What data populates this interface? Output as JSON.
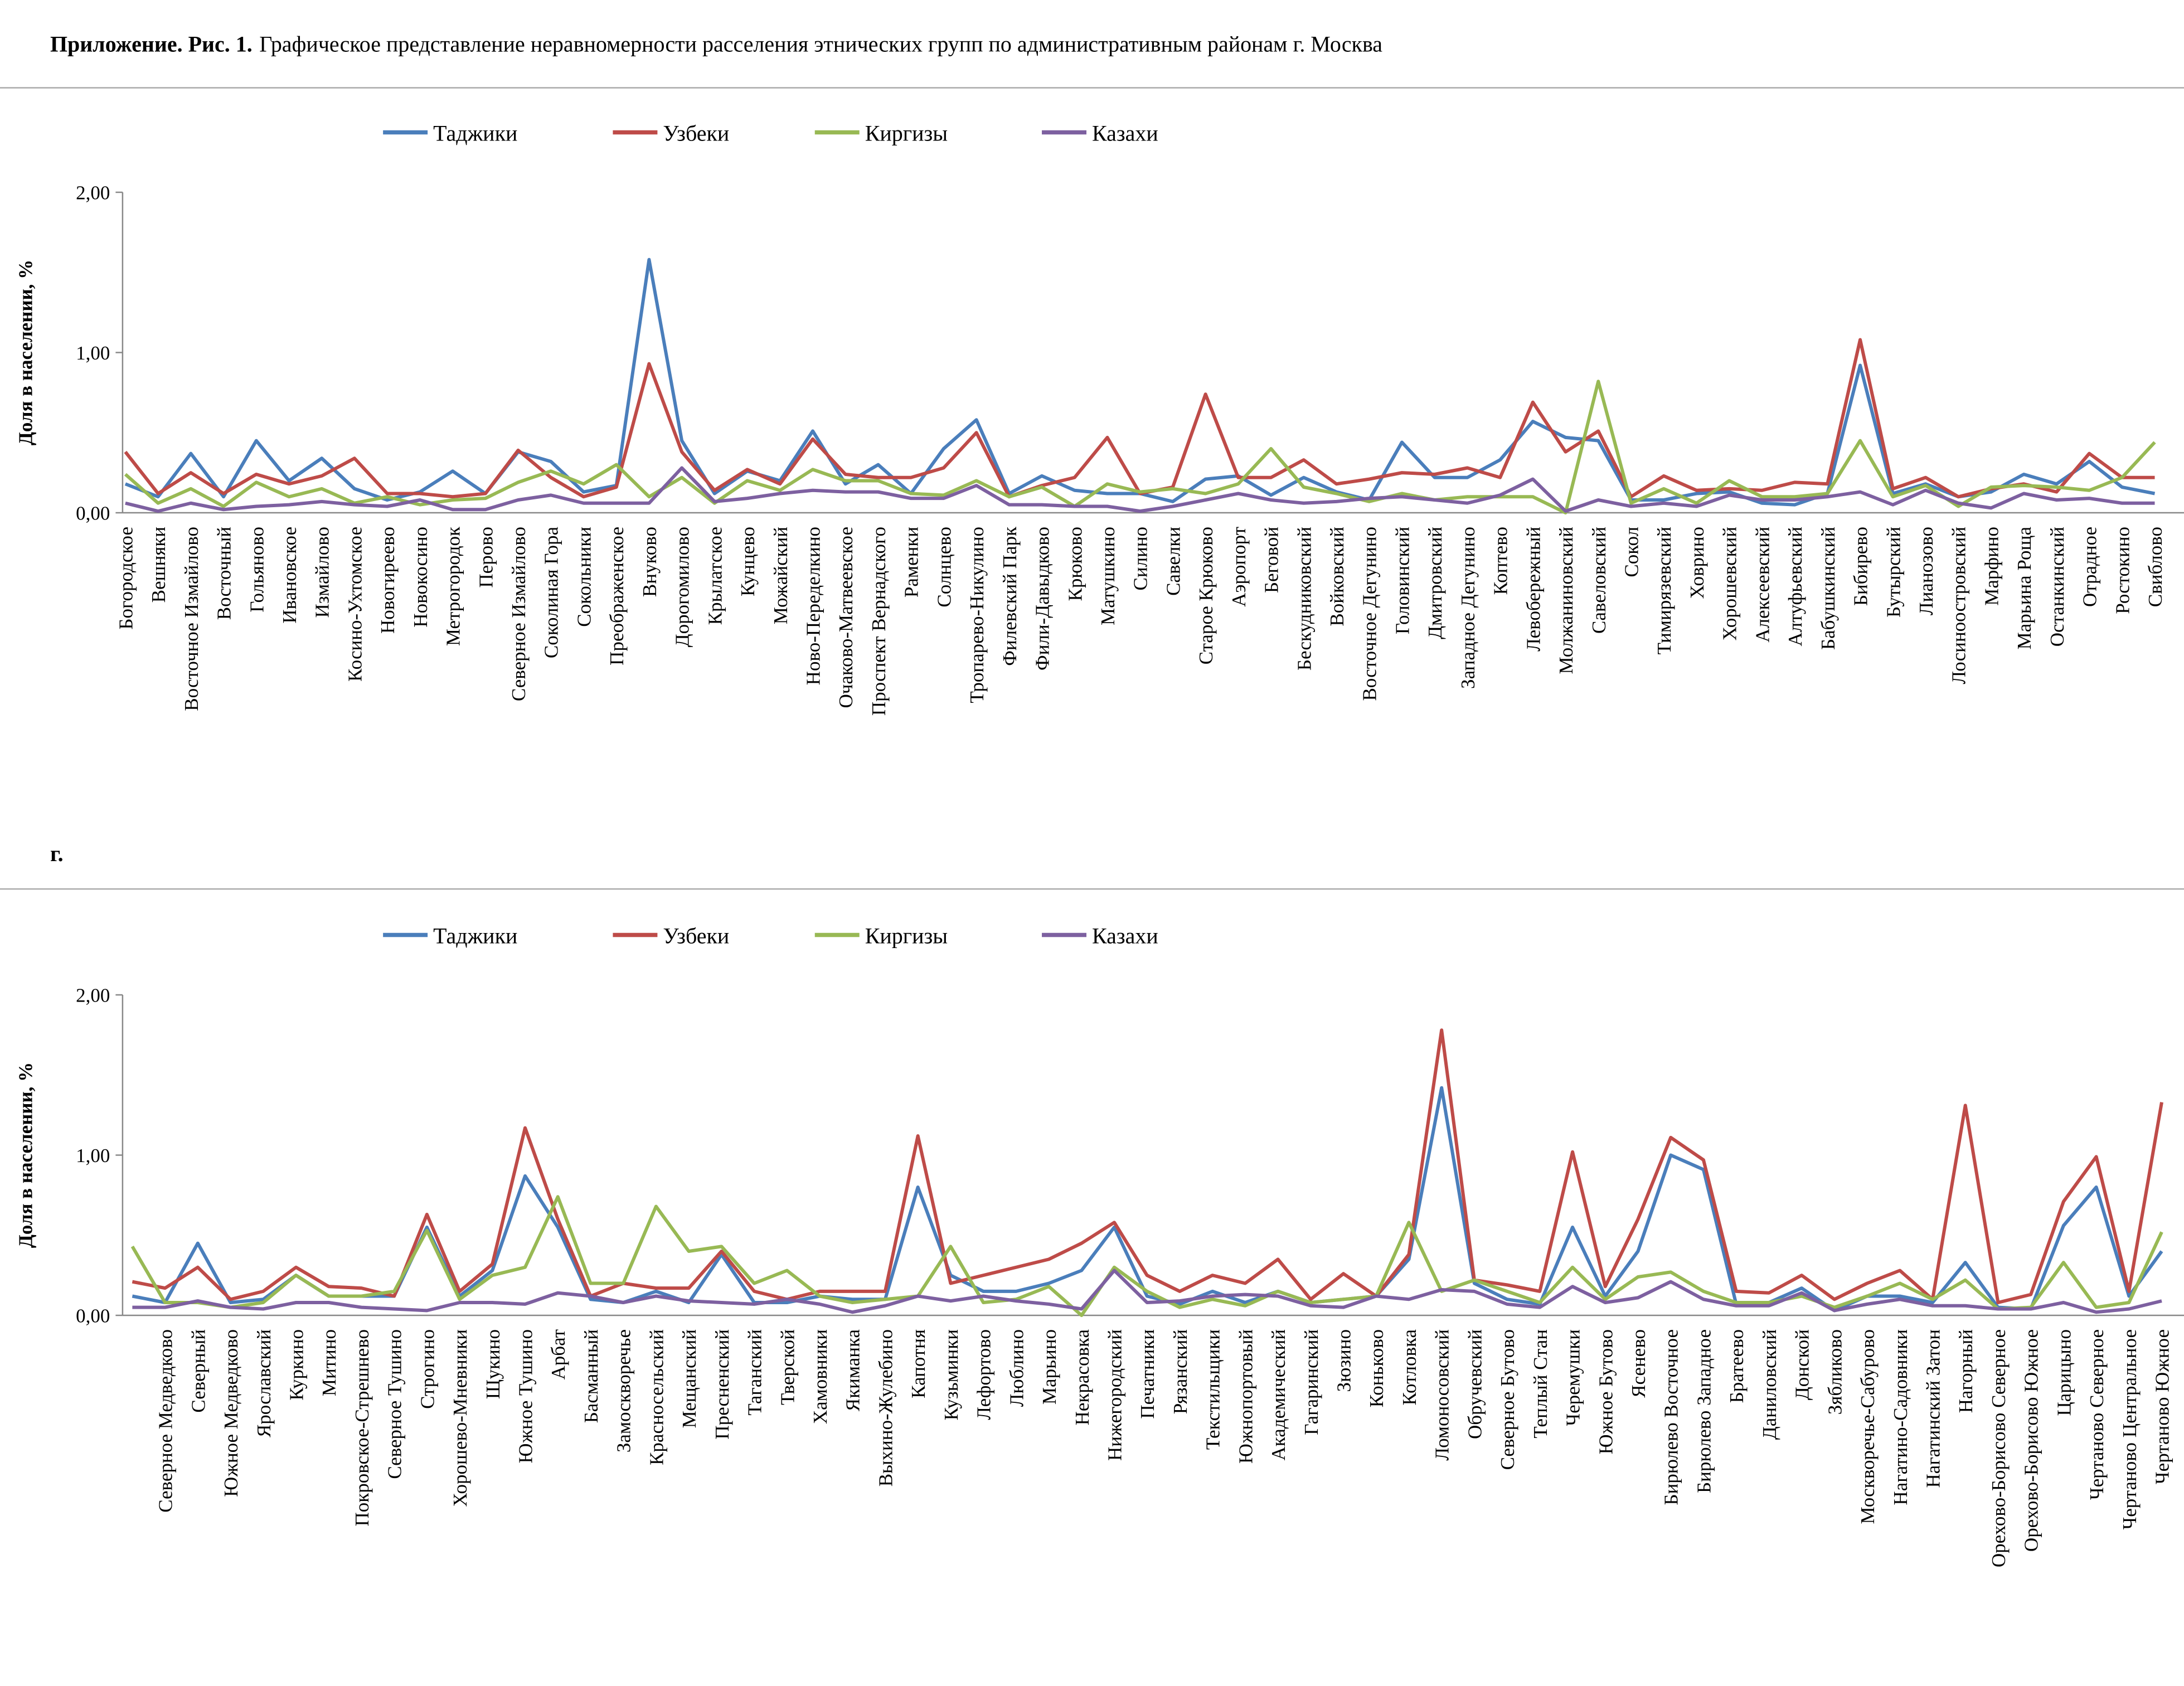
{
  "caption": {
    "bold": "Приложение. Рис. 1.",
    "text": "Графическое представление неравномерности расселения этнических групп по административным районам г. Москва"
  },
  "fragment": "г.",
  "chart_data": [
    {
      "type": "line",
      "ylabel": "Доля в населении, %",
      "ylim": [
        0,
        2
      ],
      "yticks": [
        {
          "value": 0,
          "label": "0,00"
        },
        {
          "value": 1,
          "label": "1,00"
        },
        {
          "value": 2,
          "label": "2,00"
        }
      ],
      "grid": false,
      "legend": "top",
      "categories": [
        "Богородское",
        "Вешняки",
        "Восточное Измайлово",
        "Восточный",
        "Гольяново",
        "Ивановское",
        "Измайлово",
        "Косино-Ухтомское",
        "Новогиреево",
        "Новокосино",
        "Метрогородок",
        "Перово",
        "Северное Измайлово",
        "Соколиная Гора",
        "Сокольники",
        "Преображенское",
        "Внуково",
        "Дорогомилово",
        "Крылатское",
        "Кунцево",
        "Можайский",
        "Ново-Переделкино",
        "Очаково-Матвеевское",
        "Проспект Вернадского",
        "Раменки",
        "Солнцево",
        "Тропарево-Никулино",
        "Филевский Парк",
        "Фили-Давыдково",
        "Крюково",
        "Матушкино",
        "Силино",
        "Савелки",
        "Старое Крюково",
        "Аэропорт",
        "Беговой",
        "Бескудниковский",
        "Войковский",
        "Восточное Дегунино",
        "Головинский",
        "Дмитровский",
        "Западное Дегунино",
        "Коптево",
        "Левобережный",
        "Молжаниновский",
        "Савеловский",
        "Сокол",
        "Тимирязевский",
        "Ховрино",
        "Хорошевский",
        "Алексеевский",
        "Алтуфьевский",
        "Бабушкинский",
        "Бибирево",
        "Бутырский",
        "Лианозово",
        "Лосиноостровский",
        "Марфино",
        "Марьина Роща",
        "Останкинский",
        "Отрадное",
        "Ростокино",
        "Свиблово"
      ],
      "series": [
        {
          "name": "Таджики",
          "color": "#4a7ebb",
          "values": [
            0.18,
            0.1,
            0.37,
            0.1,
            0.45,
            0.2,
            0.34,
            0.15,
            0.08,
            0.13,
            0.26,
            0.12,
            0.38,
            0.32,
            0.13,
            0.17,
            1.58,
            0.45,
            0.12,
            0.26,
            0.2,
            0.51,
            0.18,
            0.3,
            0.12,
            0.4,
            0.58,
            0.12,
            0.23,
            0.14,
            0.12,
            0.12,
            0.07,
            0.21,
            0.23,
            0.11,
            0.22,
            0.13,
            0.08,
            0.44,
            0.22,
            0.22,
            0.33,
            0.57,
            0.47,
            0.45,
            0.08,
            0.08,
            0.12,
            0.13,
            0.06,
            0.05,
            0.12,
            0.92,
            0.12,
            0.18,
            0.1,
            0.13,
            0.24,
            0.18,
            0.32,
            0.16,
            0.12
          ]
        },
        {
          "name": "Узбеки",
          "color": "#be4b48",
          "values": [
            0.38,
            0.12,
            0.25,
            0.12,
            0.24,
            0.18,
            0.23,
            0.34,
            0.12,
            0.12,
            0.1,
            0.12,
            0.39,
            0.22,
            0.1,
            0.16,
            0.93,
            0.38,
            0.14,
            0.27,
            0.18,
            0.46,
            0.24,
            0.22,
            0.22,
            0.28,
            0.5,
            0.1,
            0.17,
            0.22,
            0.47,
            0.12,
            0.16,
            0.74,
            0.22,
            0.22,
            0.33,
            0.18,
            0.21,
            0.25,
            0.24,
            0.28,
            0.22,
            0.69,
            0.38,
            0.51,
            0.1,
            0.23,
            0.14,
            0.15,
            0.14,
            0.19,
            0.18,
            1.08,
            0.15,
            0.22,
            0.1,
            0.15,
            0.18,
            0.13,
            0.37,
            0.22,
            0.22
          ]
        },
        {
          "name": "Киргизы",
          "color": "#98b954",
          "values": [
            0.24,
            0.06,
            0.15,
            0.04,
            0.19,
            0.1,
            0.15,
            0.06,
            0.1,
            0.05,
            0.08,
            0.09,
            0.19,
            0.26,
            0.18,
            0.3,
            0.1,
            0.22,
            0.06,
            0.2,
            0.14,
            0.27,
            0.2,
            0.2,
            0.12,
            0.11,
            0.2,
            0.1,
            0.16,
            0.04,
            0.18,
            0.13,
            0.15,
            0.12,
            0.18,
            0.4,
            0.16,
            0.12,
            0.07,
            0.12,
            0.08,
            0.1,
            0.1,
            0.1,
            0.0,
            0.82,
            0.06,
            0.15,
            0.06,
            0.2,
            0.1,
            0.1,
            0.12,
            0.45,
            0.1,
            0.17,
            0.04,
            0.16,
            0.17,
            0.16,
            0.14,
            0.22,
            0.44
          ]
        },
        {
          "name": "Казахи",
          "color": "#7d60a0",
          "values": [
            0.06,
            0.01,
            0.06,
            0.02,
            0.04,
            0.05,
            0.07,
            0.05,
            0.04,
            0.08,
            0.02,
            0.02,
            0.08,
            0.11,
            0.06,
            0.06,
            0.06,
            0.28,
            0.07,
            0.09,
            0.12,
            0.14,
            0.13,
            0.13,
            0.09,
            0.09,
            0.17,
            0.05,
            0.05,
            0.04,
            0.04,
            0.01,
            0.04,
            0.08,
            0.12,
            0.08,
            0.06,
            0.07,
            0.09,
            0.1,
            0.08,
            0.06,
            0.11,
            0.21,
            0.01,
            0.08,
            0.04,
            0.06,
            0.04,
            0.11,
            0.08,
            0.08,
            0.1,
            0.13,
            0.05,
            0.14,
            0.06,
            0.03,
            0.12,
            0.08,
            0.09,
            0.06,
            0.06
          ]
        }
      ]
    },
    {
      "type": "line",
      "ylabel": "Доля в населении, %",
      "ylim": [
        0,
        2
      ],
      "yticks": [
        {
          "value": 0,
          "label": "0,00"
        },
        {
          "value": 1,
          "label": "1,00"
        },
        {
          "value": 2,
          "label": "2,00"
        }
      ],
      "grid": false,
      "legend": "top",
      "categories": [
        null,
        "Северное Медведково",
        "Северный",
        "Южное Медведково",
        "Ярославский",
        "Куркино",
        "Митино",
        "Покровское-Стрешнево",
        "Северное Тушино",
        "Строгино",
        "Хорошево-Мневники",
        "Щукино",
        "Южное Тушино",
        "Арбат",
        "Басманный",
        "Замоскворечье",
        "Красносельский",
        "Мещанский",
        "Пресненский",
        "Таганский",
        "Тверской",
        "Хамовники",
        "Якиманка",
        "Выхино-Жулебино",
        "Капотня",
        "Кузьминки",
        "Лефортово",
        "Люблино",
        "Марьино",
        "Некрасовка",
        "Нижегородский",
        "Печатники",
        "Рязанский",
        "Текстильщики",
        "Южнопортовый",
        "Академический",
        "Гагаринский",
        "Зюзино",
        "Коньково",
        "Котловка",
        "Ломоносовский",
        "Обручевский",
        "Северное Бутово",
        "Теплый Стан",
        "Черемушки",
        "Южное Бутово",
        "Ясенево",
        "Бирюлево Восточное",
        "Бирюлево Западное",
        "Братеево",
        "Даниловский",
        "Донской",
        "Зябликово",
        "Москворечье-Сабурово",
        "Нагатино-Садовники",
        "Нагатинский Затон",
        "Нагорный",
        "Орехово-Борисово Северное",
        "Орехово-Борисово Южное",
        "Царицыно",
        "Чертаново Северное",
        "Чертаново Центральное",
        "Чертаново Южное"
      ],
      "series": [
        {
          "name": "Таджики",
          "color": "#4a7ebb",
          "values": [
            0.12,
            0.08,
            0.45,
            0.08,
            0.1,
            0.25,
            0.12,
            0.12,
            0.12,
            0.55,
            0.12,
            0.28,
            0.87,
            0.55,
            0.1,
            0.08,
            0.15,
            0.08,
            0.38,
            0.08,
            0.08,
            0.12,
            0.1,
            0.1,
            0.8,
            0.25,
            0.15,
            0.15,
            0.2,
            0.28,
            0.55,
            0.12,
            0.07,
            0.15,
            0.08,
            0.15,
            0.08,
            0.1,
            0.12,
            0.35,
            1.42,
            0.2,
            0.1,
            0.07,
            0.55,
            0.12,
            0.4,
            1.0,
            0.91,
            0.07,
            0.08,
            0.17,
            0.03,
            0.12,
            0.12,
            0.08,
            0.33,
            0.05,
            0.04,
            0.56,
            0.8,
            0.12,
            0.4
          ]
        },
        {
          "name": "Узбеки",
          "color": "#be4b48",
          "values": [
            0.21,
            0.17,
            0.3,
            0.1,
            0.15,
            0.3,
            0.18,
            0.17,
            0.12,
            0.63,
            0.15,
            0.32,
            1.17,
            0.6,
            0.12,
            0.2,
            0.17,
            0.17,
            0.4,
            0.15,
            0.1,
            0.15,
            0.15,
            0.15,
            1.12,
            0.2,
            0.25,
            0.3,
            0.35,
            0.45,
            0.58,
            0.25,
            0.15,
            0.25,
            0.2,
            0.35,
            0.1,
            0.26,
            0.12,
            0.38,
            1.78,
            0.22,
            0.19,
            0.15,
            1.02,
            0.18,
            0.6,
            1.11,
            0.97,
            0.15,
            0.14,
            0.25,
            0.1,
            0.2,
            0.28,
            0.1,
            1.31,
            0.08,
            0.13,
            0.71,
            0.99,
            0.15,
            1.33
          ]
        },
        {
          "name": "Киргизы",
          "color": "#98b954",
          "values": [
            0.43,
            0.08,
            0.08,
            0.05,
            0.08,
            0.25,
            0.12,
            0.12,
            0.15,
            0.53,
            0.1,
            0.25,
            0.3,
            0.74,
            0.2,
            0.2,
            0.68,
            0.4,
            0.43,
            0.2,
            0.28,
            0.12,
            0.08,
            0.1,
            0.12,
            0.43,
            0.08,
            0.1,
            0.18,
            0.0,
            0.3,
            0.15,
            0.05,
            0.1,
            0.06,
            0.15,
            0.08,
            0.1,
            0.12,
            0.58,
            0.15,
            0.22,
            0.15,
            0.08,
            0.3,
            0.1,
            0.24,
            0.27,
            0.15,
            0.08,
            0.08,
            0.12,
            0.05,
            0.12,
            0.2,
            0.1,
            0.22,
            0.04,
            0.05,
            0.33,
            0.05,
            0.08,
            0.52
          ]
        },
        {
          "name": "Казахи",
          "color": "#7d60a0",
          "values": [
            0.05,
            0.05,
            0.09,
            0.05,
            0.04,
            0.08,
            0.08,
            0.05,
            0.04,
            0.03,
            0.08,
            0.08,
            0.07,
            0.14,
            0.12,
            0.08,
            0.12,
            0.09,
            0.08,
            0.07,
            0.1,
            0.07,
            0.02,
            0.06,
            0.12,
            0.09,
            0.12,
            0.09,
            0.07,
            0.04,
            0.28,
            0.08,
            0.09,
            0.12,
            0.13,
            0.12,
            0.06,
            0.05,
            0.12,
            0.1,
            0.16,
            0.15,
            0.07,
            0.05,
            0.18,
            0.08,
            0.11,
            0.21,
            0.1,
            0.06,
            0.06,
            0.14,
            0.03,
            0.07,
            0.1,
            0.06,
            0.06,
            0.04,
            0.04,
            0.08,
            0.02,
            0.04,
            0.09
          ]
        }
      ]
    }
  ]
}
